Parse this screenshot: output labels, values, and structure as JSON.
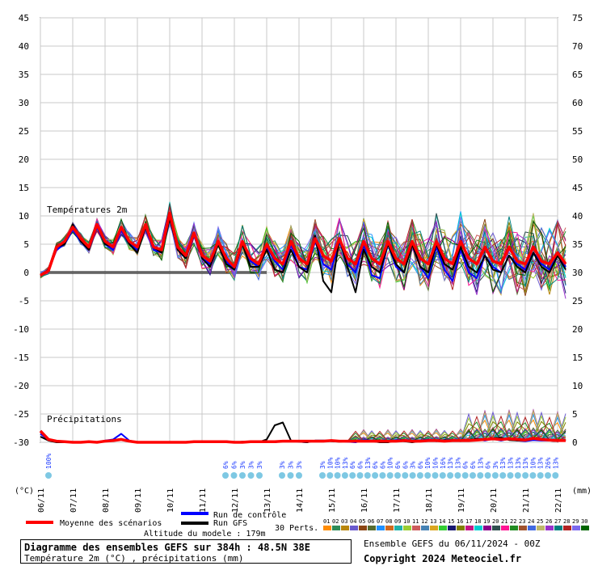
{
  "chart_data": {
    "type": "line",
    "title": "Diagramme des ensembles GEFS sur 384h : 48.5N 38E",
    "subtitle": "Température 2m (°C) , précipitations (mm)",
    "panels": [
      "Températures 2m",
      "Précipitations"
    ],
    "y_left": {
      "label": "(°C)",
      "range": [
        -30,
        45
      ],
      "ticks": [
        45,
        40,
        35,
        30,
        25,
        20,
        15,
        10,
        5,
        0,
        -5,
        -10,
        -15,
        -20,
        -25,
        -30
      ]
    },
    "y_right": {
      "label": "(mm)",
      "range": [
        0,
        75
      ],
      "ticks": [
        75,
        70,
        65,
        60,
        55,
        50,
        45,
        40,
        35,
        30,
        25,
        20,
        15,
        10,
        5,
        0
      ]
    },
    "x_labels": [
      "06/11",
      "07/11",
      "08/11",
      "09/11",
      "10/11",
      "11/11",
      "12/11",
      "13/11",
      "14/11",
      "15/11",
      "16/11",
      "17/11",
      "18/11",
      "19/11",
      "20/11",
      "21/11",
      "22/11"
    ],
    "grid": true,
    "series": [
      {
        "name": "Moyenne des scénarios",
        "color": "#ff0000",
        "temp": [
          -0.5,
          0.3,
          4.5,
          5.5,
          8,
          6,
          4.5,
          8.5,
          5.5,
          4.5,
          8,
          5.5,
          4.5,
          8.5,
          4.5,
          4,
          10.5,
          4.5,
          3,
          7,
          3,
          2,
          5.5,
          2.5,
          1,
          5.5,
          2.5,
          1.5,
          5,
          2.5,
          1.5,
          5.5,
          2.5,
          1.5,
          6,
          3,
          2,
          6,
          2.5,
          1.5,
          5.5,
          2.5,
          1.5,
          5.5,
          2.5,
          1.5,
          5.5,
          2.5,
          1.5,
          5.5,
          2.5,
          1.5,
          5.5,
          2.5,
          1.5,
          4.5,
          2,
          1.5,
          4.5,
          2,
          1.5,
          4.5,
          2,
          1.5,
          3.5,
          1.5
        ],
        "precip": [
          2,
          0.5,
          0.2,
          0.1,
          0,
          0,
          0.1,
          0,
          0.2,
          0.3,
          0.5,
          0.2,
          0,
          0,
          0,
          0,
          0,
          0,
          0,
          0.1,
          0.1,
          0.1,
          0.1,
          0.1,
          0,
          0,
          0.1,
          0.1,
          0.1,
          0.1,
          0.2,
          0.2,
          0.2,
          0.2,
          0.2,
          0.2,
          0.3,
          0.2,
          0.2,
          0.2,
          0.2,
          0.2,
          0.2,
          0.2,
          0.2,
          0.3,
          0.2,
          0.2,
          0.3,
          0.3,
          0.2,
          0.3,
          0.3,
          0.3,
          0.4,
          0.5,
          0.6,
          0.5,
          0.6,
          0.5,
          0.4,
          0.7,
          0.5,
          0.4,
          0.3,
          0.3
        ]
      },
      {
        "name": "Run de contrôle",
        "color": "#0000ff",
        "temp": [
          -0.5,
          0.5,
          4,
          5,
          7.5,
          5.5,
          4,
          8,
          5,
          4,
          7.5,
          5,
          4,
          8,
          4,
          3.5,
          10,
          4,
          2.5,
          6.5,
          2.5,
          1.5,
          5,
          2,
          0.5,
          5,
          2,
          1,
          4.5,
          2,
          0.5,
          5,
          1,
          0.5,
          5.5,
          1.5,
          0.5,
          5.5,
          1.5,
          0,
          5,
          -0.5,
          -1,
          5,
          1,
          0,
          5,
          1,
          -1,
          4.5,
          0.5,
          -1.5,
          4,
          0,
          -1,
          3,
          1,
          0,
          3,
          1.5,
          0.5,
          3.5,
          1.5,
          0.5,
          3,
          1
        ],
        "precip": [
          1.5,
          0.4,
          0.1,
          0,
          0,
          0,
          0.1,
          0,
          0.3,
          0.5,
          1.5,
          0.3,
          0,
          0,
          0,
          0,
          0,
          0,
          0,
          0,
          0.2,
          0,
          0.1,
          0.2,
          0,
          0,
          0,
          0.1,
          0.1,
          0,
          0.2,
          0.2,
          0.1,
          0,
          0.3,
          0.3,
          0.3,
          0.2,
          0.1,
          0,
          0.4,
          0.3,
          0.1,
          0.2,
          0.4,
          0.4,
          0.3,
          0.3,
          0.5,
          0.2,
          0.4,
          0.4,
          0.3,
          0.3,
          0.5,
          0.3,
          0.6,
          0.3,
          0.6,
          0.3,
          0.2,
          0.4,
          0.3,
          0.3,
          0.2,
          0.3
        ]
      },
      {
        "name": "Run GFS",
        "color": "#000000",
        "temp": [
          -0.5,
          0.5,
          4.5,
          5,
          8.5,
          5.5,
          4,
          8.5,
          5,
          4.5,
          8,
          5,
          3.5,
          8,
          4.5,
          3.5,
          9.5,
          4,
          2.5,
          7,
          2.5,
          1,
          5,
          1.5,
          0.5,
          5,
          1,
          1,
          4,
          0.5,
          0,
          4,
          1,
          0,
          6.5,
          -1.5,
          -3.5,
          6,
          1,
          -3.5,
          4,
          1,
          0,
          5,
          1.5,
          0,
          5,
          1,
          0,
          5,
          1.5,
          0.5,
          4.5,
          1,
          0,
          3,
          0.5,
          0,
          3,
          1,
          0,
          3.5,
          1,
          0,
          3,
          0.5
        ],
        "precip": [
          1,
          0.3,
          0,
          0,
          0,
          0,
          0,
          0,
          0.2,
          0.4,
          0.6,
          0.2,
          0,
          0,
          0,
          0,
          0,
          0,
          0,
          0,
          0,
          0,
          0,
          0.1,
          0,
          0.1,
          0,
          0,
          0.5,
          3,
          3.5,
          0.3,
          0.1,
          0,
          0.3,
          0.3,
          0.2,
          0.1,
          0.2,
          0.2,
          0.3,
          0.2,
          0,
          0,
          0.3,
          0.2,
          0,
          0.2,
          0.3,
          0.2,
          0.4,
          0.3,
          0.2,
          0.4,
          0.6,
          0.5,
          0.7,
          0.8,
          0.4,
          0.3,
          0.3,
          0.7,
          0.5,
          0.3,
          0.2,
          0.3
        ]
      }
    ],
    "precip_probability_labels": [
      {
        "day_index": 0,
        "slots": [
          "100%"
        ]
      },
      {
        "day_index": 5,
        "slots": [
          "6%",
          "6%",
          "3%",
          "3%",
          "3%"
        ]
      },
      {
        "day_index": 7,
        "slots": [
          "3%",
          "3%",
          "3%"
        ]
      },
      {
        "day_index": 8,
        "slots": [
          "3%",
          "10%",
          "10%",
          "13%",
          "6%",
          "6%",
          "13%",
          "6%",
          "6%",
          "10%",
          "6%",
          "6%",
          "3%",
          "6%",
          "10%",
          "16%",
          "16%",
          "13%",
          "13%",
          "6%",
          "6%",
          "13%",
          "6%",
          "3%",
          "13%",
          "13%",
          "13%",
          "13%",
          "10%",
          "13%",
          "26%",
          "13%"
        ]
      }
    ]
  },
  "legend": {
    "mean_label": "Moyenne des scénarios",
    "control_label": "Run de contrôle",
    "gfs_label": "Run GFS",
    "altitude": "Altitude du modele : 179m",
    "perts_label": "30 Perts.",
    "pert_numbers": [
      "01",
      "02",
      "03",
      "04",
      "05",
      "06",
      "07",
      "08",
      "09",
      "10",
      "11",
      "12",
      "13",
      "14",
      "15",
      "16",
      "17",
      "18",
      "19",
      "20",
      "21",
      "22",
      "23",
      "24",
      "25",
      "26",
      "27",
      "28",
      "29",
      "30"
    ],
    "pert_colors": [
      "#ff8c00",
      "#2e8b57",
      "#b8860b",
      "#6a5acd",
      "#8b4513",
      "#556b2f",
      "#1e90ff",
      "#d2691e",
      "#20b2aa",
      "#9acd32",
      "#cd5c5c",
      "#4682b4",
      "#daa520",
      "#32cd32",
      "#191970",
      "#808000",
      "#c71585",
      "#00ced1",
      "#8b008b",
      "#2f4f4f",
      "#ff1493",
      "#228b22",
      "#a0522d",
      "#4169e1",
      "#bdb76b",
      "#9932cc",
      "#008080",
      "#b22222",
      "#7b68ee",
      "#006400"
    ]
  },
  "footer": {
    "title": "Diagramme des ensembles GEFS sur 384h : 48.5N 38E",
    "subtitle": "Température 2m (°C) , précipitations (mm)",
    "run_info": "Ensemble GEFS du 06/11/2024 - 00Z",
    "copyright": "Copyright 2024 Meteociel.fr"
  }
}
